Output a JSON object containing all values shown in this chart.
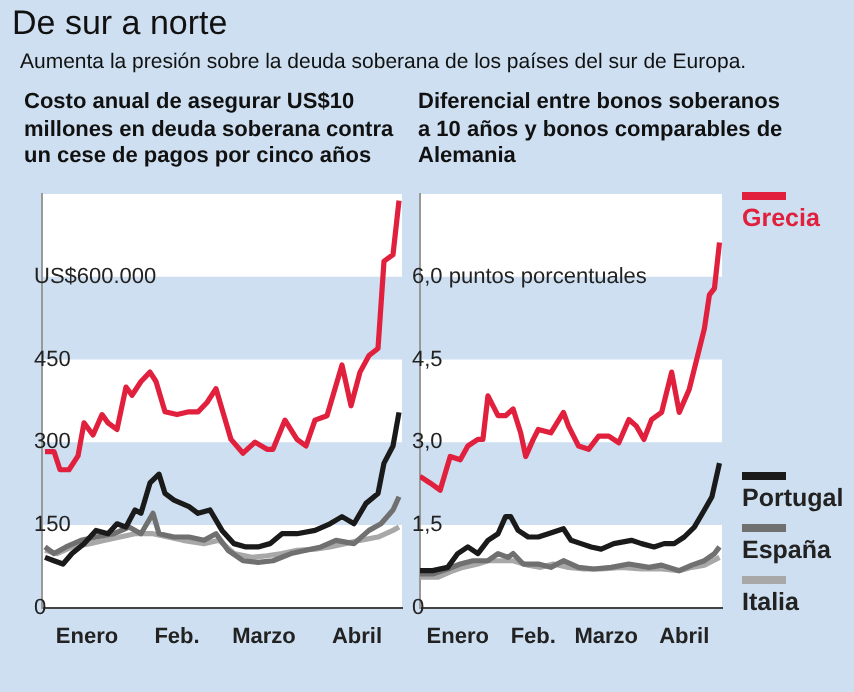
{
  "chart_data": [
    {
      "type": "line",
      "title": "De sur a norte",
      "subtitle": "Aumenta la presión sobre la deuda soberana de los países del sur de Europa.",
      "annotations": [
        "Costo anual de asegurar US$10 millones en deuda soberana contra un cese de pagos por cinco años"
      ],
      "xlim": [
        "--01-01",
        "--05-01"
      ],
      "xticks": [
        {
          "value": "--01-16",
          "label": "Enero"
        },
        {
          "value": "--02-15",
          "label": "Feb."
        },
        {
          "value": "--03-16",
          "label": "Marzo"
        },
        {
          "value": "--04-16",
          "label": "Abril"
        }
      ],
      "ylim": [
        0,
        750
      ],
      "yticks": [
        0,
        150,
        300,
        450,
        {
          "value": 600,
          "label": "US$600.000"
        }
      ],
      "bands": [
        {
          "axis": "y",
          "from": 150,
          "to": 300,
          "color": "#cddff0"
        },
        {
          "axis": "y",
          "from": 450,
          "to": 600,
          "color": "#cddff0"
        }
      ],
      "legend": false,
      "marker": "none",
      "line_style": "solid",
      "series": [
        {
          "color": "#e0203c",
          "x": [
            "--01-02",
            "--01-05",
            "--01-07",
            "--01-10",
            "--01-13",
            "--01-15",
            "--01-18",
            "--01-21",
            "--01-23",
            "--01-26",
            "--01-29",
            "--01-31",
            "--02-03",
            "--02-06",
            "--02-08",
            "--02-11",
            "--02-15",
            "--02-19",
            "--02-22",
            "--02-25",
            "--02-28",
            "--03-02",
            "--03-05",
            "--03-09",
            "--03-13",
            "--03-17",
            "--03-19",
            "--03-23",
            "--03-27",
            "--03-30",
            "--04-02",
            "--04-06",
            "--04-11",
            "--04-14",
            "--04-17",
            "--04-20",
            "--04-23",
            "--04-25",
            "--04-28",
            "--04-30"
          ],
          "values": [
            283,
            283,
            250,
            250,
            275,
            335,
            313,
            350,
            335,
            323,
            400,
            385,
            410,
            427,
            410,
            355,
            350,
            355,
            355,
            372,
            397,
            360,
            305,
            280,
            300,
            287,
            287,
            340,
            305,
            293,
            340,
            348,
            440,
            366,
            427,
            457,
            470,
            628,
            640,
            738
          ]
        },
        {
          "color": "#1a1a1a",
          "x": [
            "--01-02",
            "--01-05",
            "--01-08",
            "--01-11",
            "--01-15",
            "--01-19",
            "--01-23",
            "--01-26",
            "--01-29",
            "--02-01",
            "--02-03",
            "--02-06",
            "--02-09",
            "--02-11",
            "--02-14",
            "--02-19",
            "--02-22",
            "--02-26",
            "--03-02",
            "--03-06",
            "--03-10",
            "--03-14",
            "--03-18",
            "--03-22",
            "--03-27",
            "--04-02",
            "--04-07",
            "--04-11",
            "--04-15",
            "--04-19",
            "--04-23",
            "--04-25",
            "--04-28",
            "--04-30"
          ],
          "values": [
            91,
            85,
            79,
            98,
            116,
            140,
            134,
            152,
            146,
            177,
            171,
            226,
            242,
            207,
            195,
            183,
            171,
            177,
            140,
            116,
            110,
            110,
            116,
            134,
            134,
            140,
            152,
            165,
            152,
            189,
            207,
            262,
            293,
            354
          ]
        },
        {
          "color": "#707070",
          "x": [
            "--01-02",
            "--01-05",
            "--01-09",
            "--01-14",
            "--01-19",
            "--01-25",
            "--01-30",
            "--02-03",
            "--02-07",
            "--02-09",
            "--02-14",
            "--02-19",
            "--02-24",
            "--02-28",
            "--03-04",
            "--03-09",
            "--03-14",
            "--03-19",
            "--03-25",
            "--03-30",
            "--04-04",
            "--04-09",
            "--04-15",
            "--04-20",
            "--04-24",
            "--04-28",
            "--04-30"
          ],
          "values": [
            110,
            98,
            110,
            122,
            128,
            134,
            146,
            134,
            171,
            134,
            128,
            128,
            122,
            134,
            104,
            85,
            82,
            85,
            98,
            104,
            110,
            122,
            116,
            140,
            152,
            177,
            201
          ]
        },
        {
          "color": "#a8a8a8",
          "x": [
            "--01-02",
            "--01-06",
            "--01-11",
            "--01-17",
            "--01-22",
            "--01-27",
            "--02-01",
            "--02-07",
            "--02-12",
            "--02-17",
            "--02-24",
            "--03-01",
            "--03-06",
            "--03-12",
            "--03-17",
            "--03-22",
            "--03-27",
            "--04-02",
            "--04-07",
            "--04-12",
            "--04-17",
            "--04-23",
            "--04-28",
            "--04-30"
          ],
          "values": [
            104,
            98,
            110,
            116,
            122,
            128,
            134,
            134,
            128,
            122,
            116,
            122,
            98,
            91,
            94,
            98,
            104,
            106,
            110,
            116,
            122,
            128,
            140,
            146
          ]
        }
      ]
    },
    {
      "type": "line",
      "title": "Diferencial entre bonos soberanos a 10 años y bonos comparables de Alemania",
      "xlim": [
        "--01-01",
        "--05-01"
      ],
      "xticks": [
        {
          "value": "--01-16",
          "label": "Enero"
        },
        {
          "value": "--02-15",
          "label": "Feb."
        },
        {
          "value": "--03-16",
          "label": "Marzo"
        },
        {
          "value": "--04-16",
          "label": "Abril"
        }
      ],
      "ylim": [
        0,
        7.5
      ],
      "yticks": [
        0,
        {
          "value": 1.5,
          "label": "1,5"
        },
        {
          "value": 3,
          "label": "3,0"
        },
        {
          "value": 4.5,
          "label": "4,5"
        },
        {
          "value": 6,
          "label": "6,0 puntos porcentuales"
        }
      ],
      "bands": [
        {
          "axis": "y",
          "from": 1.5,
          "to": 3,
          "color": "#cddff0"
        },
        {
          "axis": "y",
          "from": 4.5,
          "to": 6,
          "color": "#cddff0"
        }
      ],
      "legend": "right",
      "marker": "none",
      "line_style": "solid",
      "series": [
        {
          "name": "Grecia",
          "color": "#e0203c",
          "x": [
            "--01-01",
            "--01-05",
            "--01-09",
            "--01-13",
            "--01-17",
            "--01-20",
            "--01-24",
            "--01-26",
            "--01-28",
            "--02-01",
            "--02-04",
            "--02-07",
            "--02-10",
            "--02-12",
            "--02-15",
            "--02-17",
            "--02-22",
            "--02-27",
            "--03-01",
            "--03-05",
            "--03-09",
            "--03-13",
            "--03-17",
            "--03-21",
            "--03-25",
            "--03-28",
            "--03-31",
            "--04-03",
            "--04-07",
            "--04-11",
            "--04-14",
            "--04-18",
            "--04-21",
            "--04-24",
            "--04-26",
            "--04-28",
            "--04-30"
          ],
          "values": [
            2.38,
            2.26,
            2.13,
            2.74,
            2.68,
            2.93,
            3.05,
            3.05,
            3.84,
            3.48,
            3.48,
            3.6,
            3.17,
            2.74,
            3.05,
            3.23,
            3.17,
            3.54,
            3.29,
            2.93,
            2.87,
            3.11,
            3.11,
            2.99,
            3.41,
            3.29,
            3.05,
            3.41,
            3.54,
            4.27,
            3.54,
            3.96,
            4.51,
            5.06,
            5.67,
            5.79,
            6.62
          ]
        },
        {
          "name": "Portugal",
          "color": "#1a1a1a",
          "x": [
            "--01-01",
            "--01-06",
            "--01-12",
            "--01-16",
            "--01-20",
            "--01-24",
            "--01-28",
            "--02-01",
            "--02-04",
            "--02-06",
            "--02-09",
            "--02-13",
            "--02-17",
            "--02-21",
            "--02-27",
            "--03-02",
            "--03-06",
            "--03-10",
            "--03-14",
            "--03-19",
            "--03-26",
            "--03-30",
            "--04-04",
            "--04-08",
            "--04-12",
            "--04-16",
            "--04-20",
            "--04-24",
            "--04-27",
            "--04-30"
          ],
          "values": [
            0.67,
            0.67,
            0.73,
            0.98,
            1.1,
            0.98,
            1.22,
            1.34,
            1.65,
            1.65,
            1.4,
            1.28,
            1.28,
            1.34,
            1.43,
            1.22,
            1.16,
            1.1,
            1.06,
            1.16,
            1.22,
            1.16,
            1.1,
            1.16,
            1.16,
            1.28,
            1.46,
            1.77,
            2.01,
            2.62
          ]
        },
        {
          "name": "España",
          "color": "#707070",
          "x": [
            "--01-01",
            "--01-06",
            "--01-12",
            "--01-17",
            "--01-22",
            "--01-28",
            "--02-01",
            "--02-05",
            "--02-07",
            "--02-11",
            "--02-17",
            "--02-22",
            "--02-27",
            "--03-05",
            "--03-11",
            "--03-18",
            "--03-25",
            "--04-02",
            "--04-07",
            "--04-14",
            "--04-19",
            "--04-24",
            "--04-28",
            "--04-30"
          ],
          "values": [
            0.61,
            0.61,
            0.7,
            0.79,
            0.85,
            0.85,
            0.98,
            0.91,
            0.98,
            0.79,
            0.79,
            0.73,
            0.85,
            0.73,
            0.7,
            0.73,
            0.79,
            0.73,
            0.77,
            0.67,
            0.77,
            0.85,
            0.98,
            1.1
          ]
        },
        {
          "name": "Italia",
          "color": "#a8a8a8",
          "x": [
            "--01-01",
            "--01-08",
            "--01-13",
            "--01-18",
            "--01-24",
            "--01-28",
            "--02-02",
            "--02-07",
            "--02-13",
            "--02-18",
            "--02-23",
            "--03-01",
            "--03-07",
            "--03-14",
            "--03-22",
            "--03-30",
            "--04-07",
            "--04-14",
            "--04-19",
            "--04-24",
            "--04-30"
          ],
          "values": [
            0.55,
            0.55,
            0.65,
            0.73,
            0.79,
            0.85,
            0.85,
            0.85,
            0.77,
            0.73,
            0.79,
            0.73,
            0.7,
            0.7,
            0.73,
            0.7,
            0.7,
            0.67,
            0.73,
            0.77,
            0.91
          ]
        }
      ]
    }
  ]
}
